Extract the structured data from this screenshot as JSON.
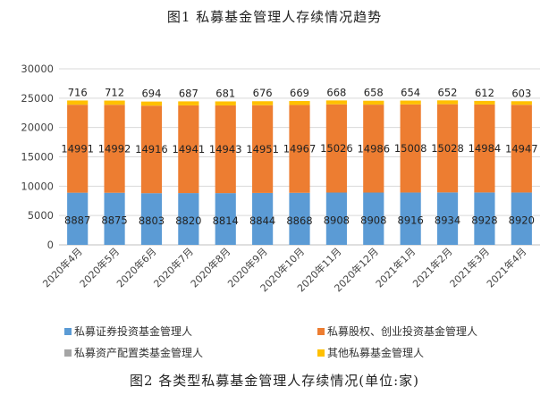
{
  "chart_data": {
    "type": "bar",
    "stacked": true,
    "title": "图1 私募基金管理人存续情况趋势",
    "caption": "图2 各类型私募基金管理人存续情况(单位:家)",
    "categories": [
      "2020年4月",
      "2020年5月",
      "2020年6月",
      "2020年7月",
      "2020年8月",
      "2020年9月",
      "2020年10月",
      "2020年11月",
      "2020年12月",
      "2021年1月",
      "2021年2月",
      "2021年3月",
      "2021年4月"
    ],
    "ylim": [
      0,
      30000
    ],
    "yticks": [
      0,
      5000,
      10000,
      15000,
      20000,
      25000,
      30000
    ],
    "grid": true,
    "legend_position": "bottom",
    "series": [
      {
        "name": "私募证券投资基金管理人",
        "color": "#5b9bd5",
        "values": [
          8887,
          8875,
          8803,
          8820,
          8814,
          8844,
          8868,
          8908,
          8908,
          8916,
          8934,
          8928,
          8920
        ],
        "show_labels": true
      },
      {
        "name": "私募股权、创业投资基金管理人",
        "color": "#ed7d31",
        "values": [
          14991,
          14992,
          14916,
          14941,
          14943,
          14951,
          14967,
          15026,
          14986,
          15008,
          15028,
          14984,
          14947
        ],
        "show_labels": true
      },
      {
        "name": "私募资产配置类基金管理人",
        "color": "#a5a5a5",
        "values": [
          9,
          9,
          9,
          9,
          9,
          9,
          9,
          9,
          9,
          9,
          9,
          9,
          9
        ],
        "show_labels": false
      },
      {
        "name": "其他私募基金管理人",
        "color": "#ffc000",
        "values": [
          716,
          712,
          694,
          687,
          681,
          676,
          669,
          668,
          658,
          654,
          652,
          612,
          603
        ],
        "show_labels": true
      }
    ]
  }
}
